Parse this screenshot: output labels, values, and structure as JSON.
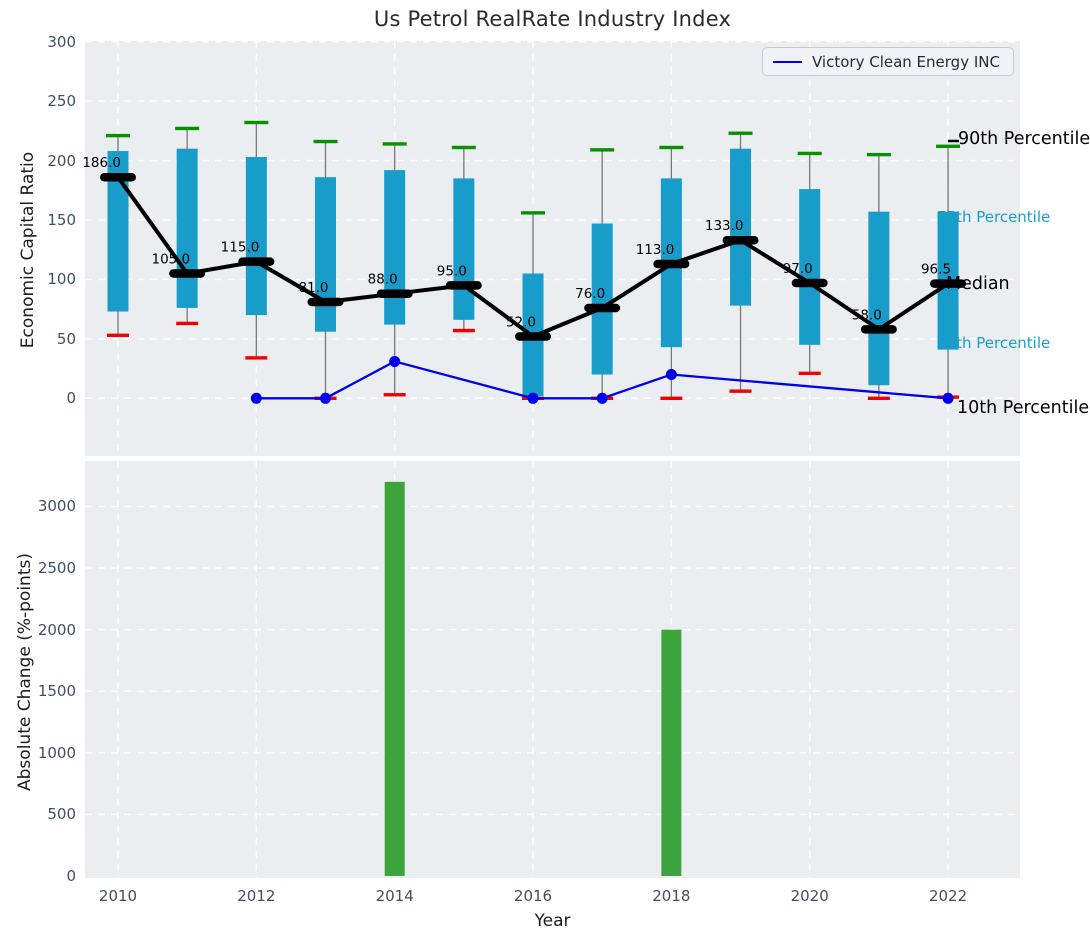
{
  "title": "Us Petrol RealRate Industry Index",
  "legend": {
    "label": "Victory Clean Energy INC",
    "line_color": "#0000ee"
  },
  "annotations": {
    "p90_label": "90th Percentile",
    "p75_label": "75th Percentile",
    "median_label": "Median",
    "p25_label": "25th Percentile",
    "p10_label": "10th Percentile"
  },
  "colors": {
    "box": "#189dcb",
    "whisker": "#777777",
    "cap_high": "#089000",
    "cap_low": "#f50000",
    "median_line": "#000000",
    "company_line": "#0000ee",
    "bar": "#3da33d",
    "plot_bg": "#ebeef1",
    "grid": "#ffffff",
    "tick_text": "#3d5065",
    "cyan_text": "#189dcb"
  },
  "chart_data": [
    {
      "type": "boxwhisker-line",
      "title": "Us Petrol RealRate Industry Index",
      "ylabel": "Economic Capital Ratio",
      "ylim": [
        -48,
        300
      ],
      "yticks": [
        0,
        50,
        100,
        150,
        200,
        250,
        300
      ],
      "xticks": [
        2010,
        2012,
        2014,
        2016,
        2018,
        2020,
        2022
      ],
      "grid": true,
      "legend_position": "upper right",
      "years": [
        2010,
        2011,
        2012,
        2013,
        2014,
        2015,
        2016,
        2017,
        2018,
        2019,
        2020,
        2021,
        2022
      ],
      "series": [
        {
          "name": "10th Percentile",
          "values": [
            53,
            63,
            34,
            0,
            3,
            57,
            0,
            0,
            0,
            6,
            21,
            0,
            1
          ]
        },
        {
          "name": "25th Percentile",
          "values": [
            73,
            76,
            70,
            56,
            62,
            66,
            2,
            20,
            43,
            78,
            45,
            11,
            41
          ]
        },
        {
          "name": "Median",
          "values": [
            186,
            105,
            115,
            81,
            88,
            95,
            52,
            76,
            113,
            133,
            97,
            58,
            96.5
          ]
        },
        {
          "name": "75th Percentile",
          "values": [
            208,
            210,
            203,
            186,
            192,
            185,
            105,
            147,
            185,
            210,
            176,
            157,
            157
          ]
        },
        {
          "name": "90th Percentile",
          "values": [
            221,
            227,
            232,
            216,
            214,
            211,
            156,
            209,
            211,
            223,
            206,
            205,
            212
          ]
        }
      ],
      "median_point_labels": [
        "186.0",
        "105.0",
        "115.0",
        "81.0",
        "88.0",
        "95.0",
        "52.0",
        "76.0",
        "113.0",
        "133.0",
        "97.0",
        "58.0",
        "96.5"
      ],
      "company_line": {
        "name": "Victory Clean Energy INC",
        "x": [
          2012,
          2013,
          2014,
          2016,
          2017,
          2018,
          2022
        ],
        "y": [
          0,
          0,
          31,
          0,
          0,
          20,
          0
        ]
      }
    },
    {
      "type": "bar",
      "ylabel": "Absolute Change (%-points)",
      "xlabel": "Year",
      "ylim": [
        0,
        3370
      ],
      "yticks": [
        0,
        500,
        1000,
        1500,
        2000,
        2500,
        3000
      ],
      "xticks": [
        2010,
        2012,
        2014,
        2016,
        2018,
        2020,
        2022
      ],
      "grid": true,
      "categories": [
        2014,
        2018
      ],
      "values": [
        3200,
        2000
      ]
    }
  ]
}
